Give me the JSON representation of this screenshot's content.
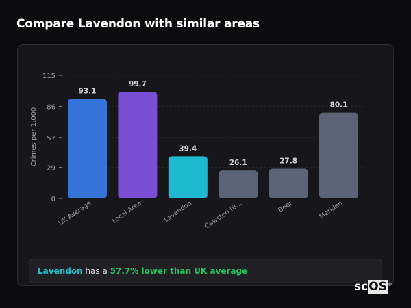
{
  "header": {
    "title": "Compare Lavendon with similar areas"
  },
  "chart_data": {
    "type": "bar",
    "ylabel": "Crimes per 1,000",
    "ylim": [
      0,
      115
    ],
    "yticks": [
      0,
      29,
      57,
      86,
      115
    ],
    "grid": true,
    "categories": [
      "UK Average",
      "Local Area",
      "Lavendon",
      "Cawston (B...",
      "Beer",
      "Meriden"
    ],
    "values": [
      93.1,
      99.7,
      39.4,
      26.1,
      27.8,
      80.1
    ],
    "data_labels": [
      "93.1",
      "99.7",
      "39.4",
      "26.1",
      "27.8",
      "80.1"
    ],
    "colors": [
      "#3574d9",
      "#7a4fd3",
      "#20b9d2",
      "#5a6476",
      "#5a6476",
      "#5a6476"
    ]
  },
  "insight": {
    "place": "Lavendon",
    "middle": " has a ",
    "comparison": "57.7% lower than UK average"
  },
  "brand": {
    "logo_text": "scOS"
  }
}
